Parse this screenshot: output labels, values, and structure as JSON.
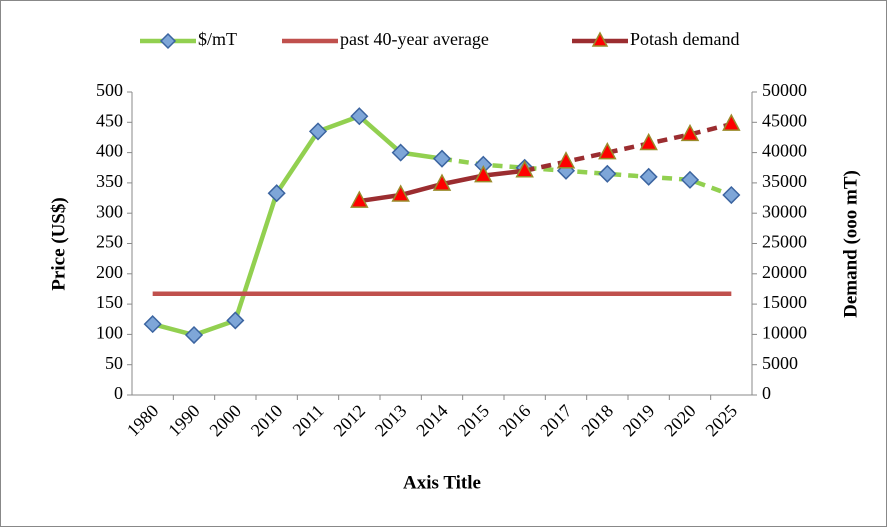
{
  "chart_data": {
    "type": "line",
    "categories": [
      "1980",
      "1990",
      "2000",
      "2010",
      "2011",
      "2012",
      "2013",
      "2014",
      "2015",
      "2016",
      "2017",
      "2018",
      "2019",
      "2020",
      "2025"
    ],
    "series": [
      {
        "name": "$/mT",
        "color": "#92d050",
        "marker": "diamond",
        "marker_color": "#7ea6d8",
        "axis": "y",
        "dash_from": 7,
        "values": [
          117,
          99,
          123,
          333,
          435,
          460,
          400,
          390,
          380,
          375,
          370,
          365,
          360,
          355,
          330
        ]
      },
      {
        "name": "past 40-year average",
        "color": "#c0504d",
        "marker": "none",
        "axis": "y",
        "values": [
          167,
          167,
          167,
          167,
          167,
          167,
          167,
          167,
          167,
          167,
          167,
          167,
          167,
          167,
          167
        ]
      },
      {
        "name": "Potash demand",
        "color": "#9b2d30",
        "marker": "triangle",
        "marker_color": "#ff0000",
        "axis": "y2",
        "dash_from": 9,
        "values": [
          null,
          null,
          null,
          null,
          null,
          32000,
          33000,
          34800,
          36200,
          37000,
          38500,
          40000,
          41500,
          43000,
          44700
        ]
      }
    ],
    "ylim": [
      0,
      500
    ],
    "yticks": [
      0,
      50,
      100,
      150,
      200,
      250,
      300,
      350,
      400,
      450,
      500
    ],
    "y2lim": [
      0,
      50000
    ],
    "y2ticks": [
      0,
      5000,
      10000,
      15000,
      20000,
      25000,
      30000,
      35000,
      40000,
      45000,
      50000
    ],
    "ylabel": "Price (US$)",
    "y2label": "Demand  (ooo mT)",
    "xlabel": "Axis Title",
    "legend": "top"
  }
}
